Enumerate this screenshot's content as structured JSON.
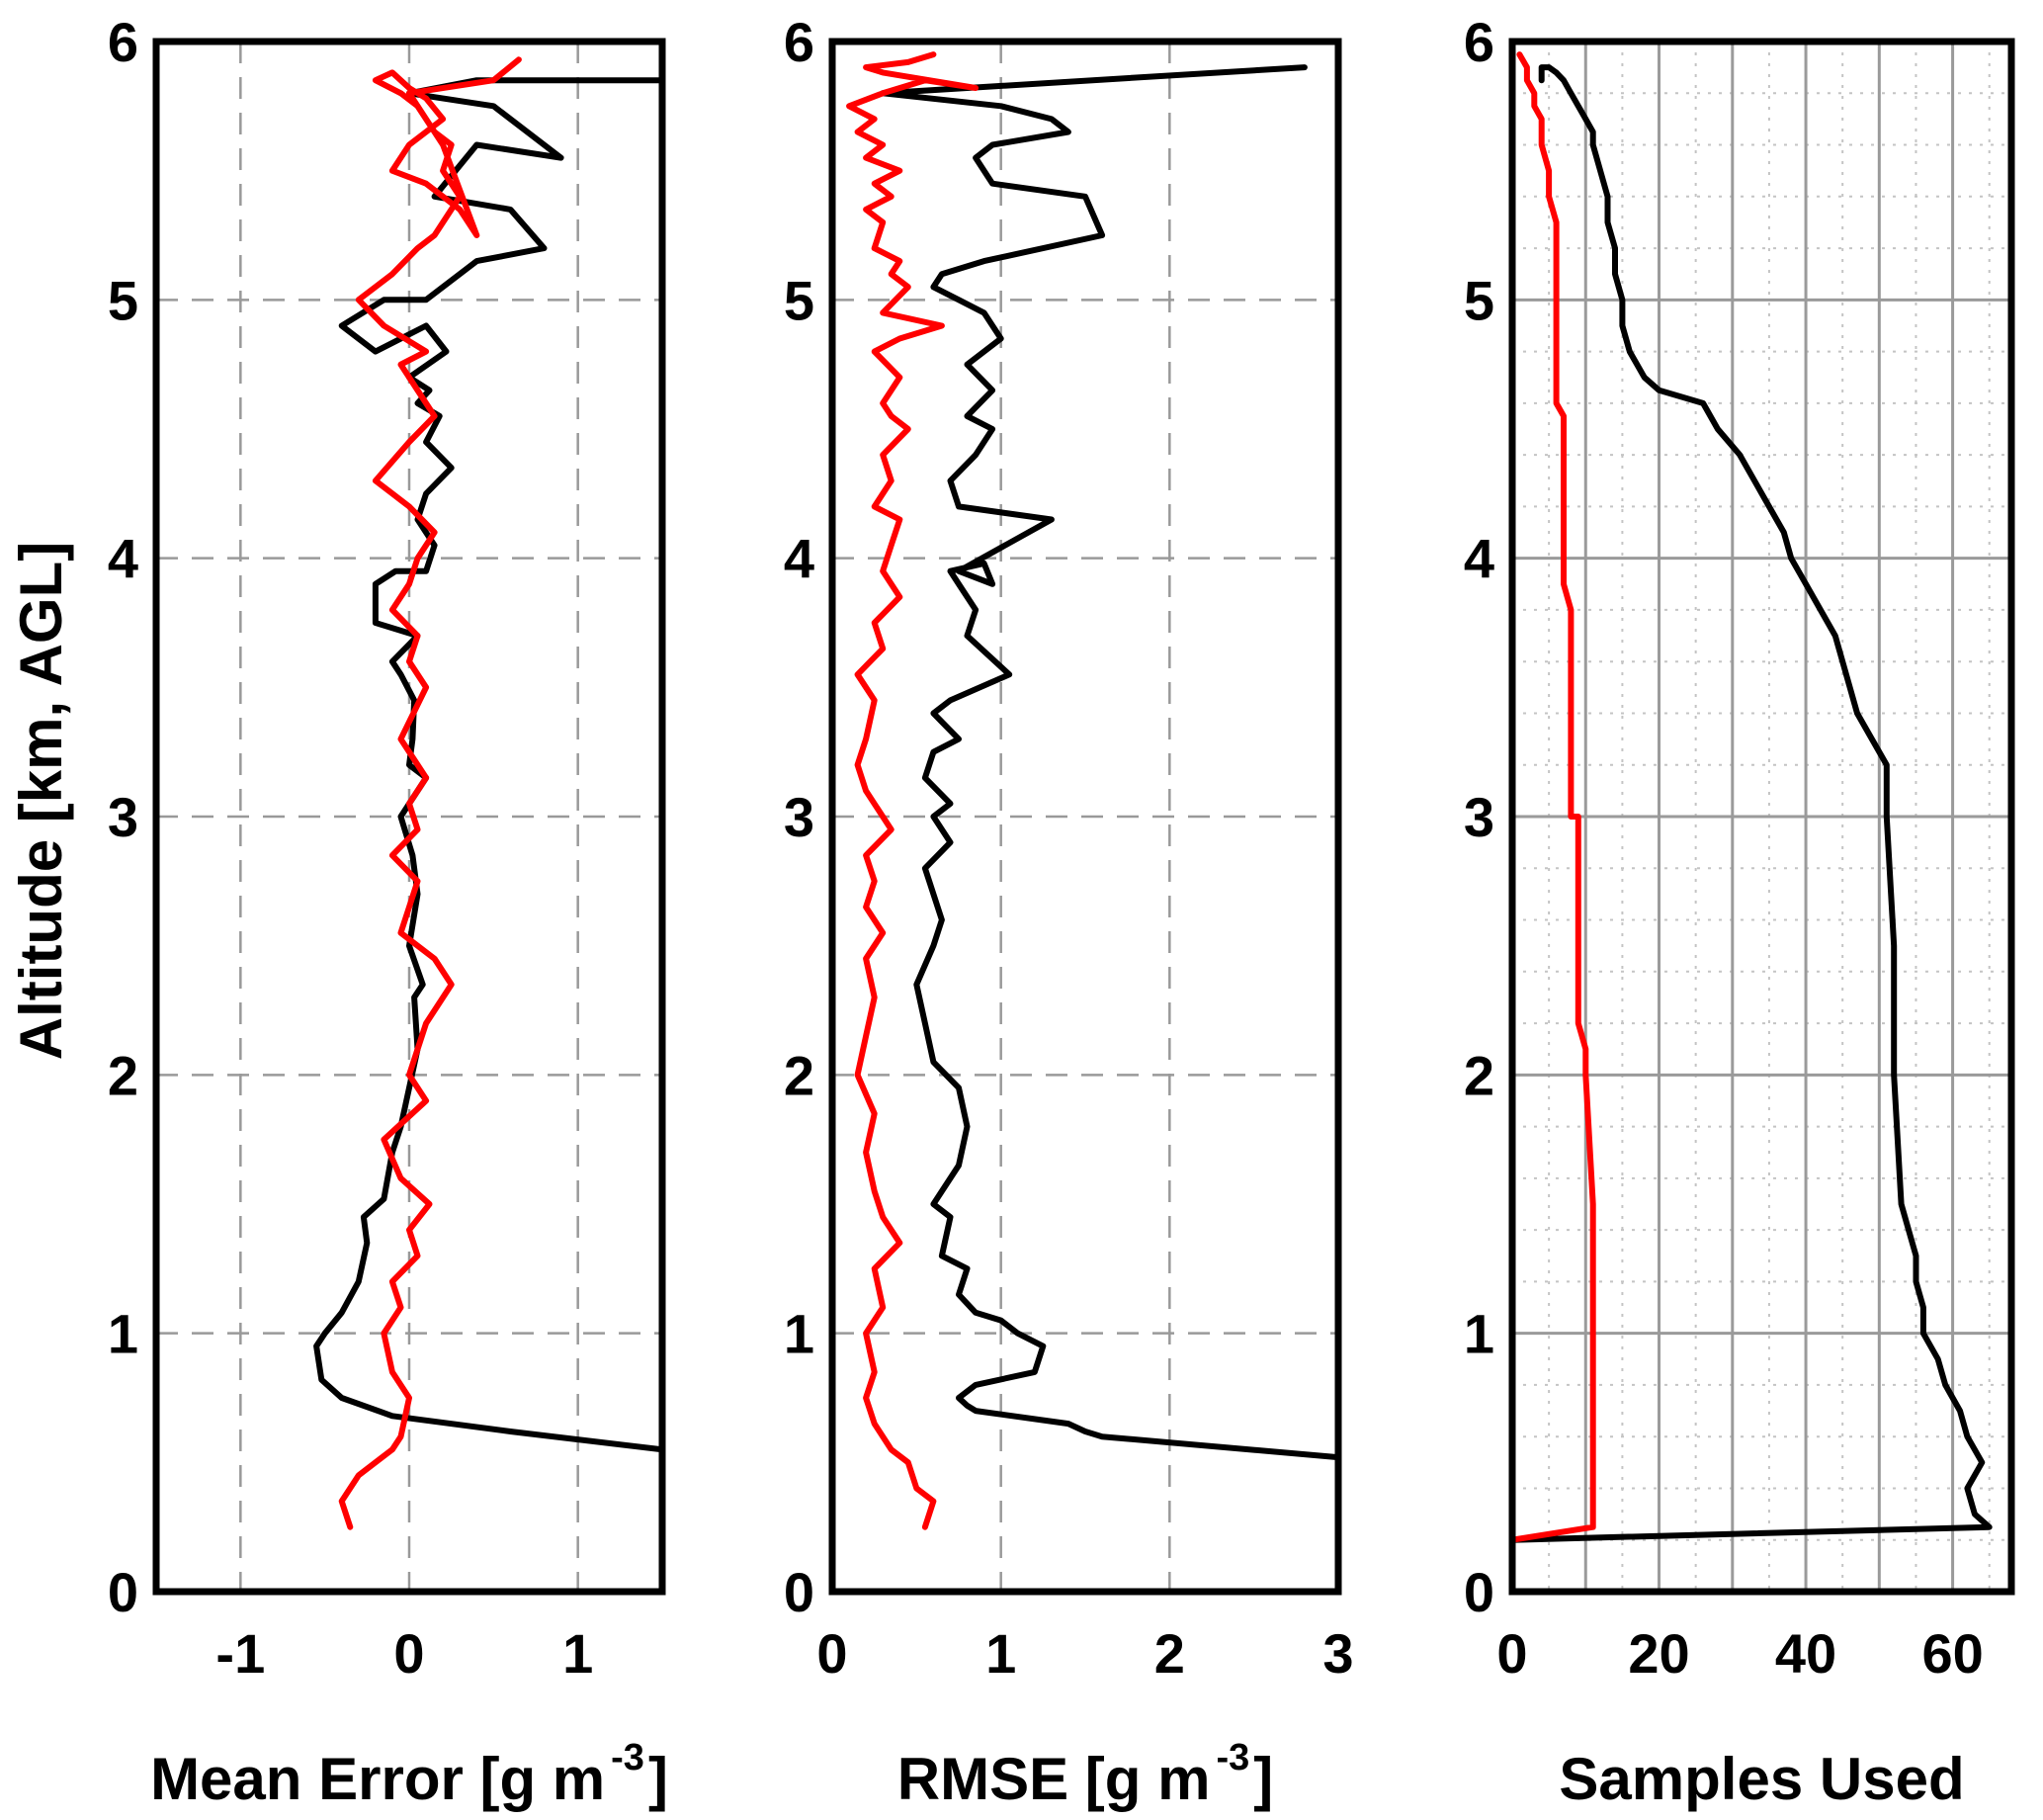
{
  "figure": {
    "ylabel": "Altitude [km, AGL]"
  },
  "chart_data": [
    {
      "type": "line",
      "xlabel": "Mean Error [g m -3]",
      "xlabel_main": "Mean Error [g m",
      "xlabel_sup": "-3",
      "xlabel_end": "]",
      "xlim": [
        -1.5,
        1.5
      ],
      "ylim": [
        0,
        6
      ],
      "xticks": [
        "-1",
        "0",
        "1"
      ],
      "xtick_values": [
        -1,
        0,
        1
      ],
      "yticks": [
        "0",
        "1",
        "2",
        "3",
        "4",
        "5",
        "6"
      ],
      "ytick_values": [
        0,
        1,
        2,
        3,
        4,
        5,
        6
      ],
      "grid": "dashed",
      "series": [
        {
          "color": "#000000",
          "x": [
            1.5,
            0.6,
            -0.1,
            -0.4,
            -0.52,
            -0.55,
            -0.5,
            -0.4,
            -0.3,
            -0.25,
            -0.27,
            -0.15,
            -0.1,
            -0.05,
            0.0,
            0.05,
            0.03,
            0.08,
            0.0,
            0.05,
            0.02,
            -0.05,
            0.1,
            0.0,
            0.02,
            0.03,
            -0.05,
            -0.1,
            0.05,
            -0.2,
            -0.2,
            -0.08,
            0.1,
            0.15,
            0.05,
            0.1,
            0.25,
            0.1,
            0.18,
            0.05,
            0.12,
            0.0,
            0.22,
            0.1,
            -0.2,
            -0.4,
            -0.15,
            0.1,
            0.4,
            0.8,
            0.6,
            0.15,
            0.4,
            0.9,
            0.5,
            0.0,
            0.4,
            1.5
          ],
          "y": [
            0.55,
            0.62,
            0.68,
            0.75,
            0.82,
            0.95,
            1.0,
            1.08,
            1.2,
            1.35,
            1.45,
            1.52,
            1.7,
            1.8,
            1.95,
            2.1,
            2.3,
            2.35,
            2.5,
            2.7,
            2.85,
            3.0,
            3.15,
            3.2,
            3.3,
            3.45,
            3.55,
            3.6,
            3.7,
            3.75,
            3.9,
            3.95,
            3.95,
            4.05,
            4.15,
            4.25,
            4.35,
            4.45,
            4.55,
            4.6,
            4.65,
            4.7,
            4.8,
            4.9,
            4.8,
            4.9,
            5.0,
            5.0,
            5.15,
            5.2,
            5.35,
            5.4,
            5.6,
            5.55,
            5.75,
            5.8,
            5.85,
            5.85
          ]
        },
        {
          "color": "#ff0000",
          "x": [
            -0.35,
            -0.4,
            -0.3,
            -0.2,
            -0.1,
            -0.05,
            0.0,
            -0.1,
            -0.15,
            -0.05,
            -0.1,
            0.05,
            0.0,
            0.12,
            -0.05,
            -0.15,
            0.1,
            0.0,
            0.1,
            0.25,
            0.15,
            -0.05,
            0.0,
            0.05,
            -0.1,
            0.05,
            0.0,
            0.1,
            -0.05,
            0.1,
            0.0,
            0.05,
            -0.1,
            0.0,
            0.05,
            0.15,
            0.0,
            -0.1,
            -0.2,
            0.0,
            0.15,
            0.05,
            -0.05,
            0.1,
            -0.15,
            -0.3,
            -0.1,
            0.05,
            0.15,
            0.3,
            0.2,
            0.25,
            0.15,
            0.05,
            -0.05,
            -0.2,
            -0.1,
            0.0,
            0.1,
            0.2,
            0.0,
            -0.1,
            0.1,
            0.3,
            0.4,
            0.2,
            0.0,
            0.5,
            0.65
          ],
          "y": [
            0.25,
            0.35,
            0.45,
            0.5,
            0.55,
            0.6,
            0.75,
            0.85,
            1.0,
            1.1,
            1.2,
            1.3,
            1.4,
            1.5,
            1.6,
            1.75,
            1.9,
            2.0,
            2.2,
            2.35,
            2.45,
            2.55,
            2.65,
            2.75,
            2.85,
            2.95,
            3.05,
            3.15,
            3.3,
            3.5,
            3.6,
            3.7,
            3.8,
            3.9,
            4.0,
            4.1,
            4.2,
            4.25,
            4.3,
            4.45,
            4.55,
            4.65,
            4.75,
            4.8,
            4.9,
            5.0,
            5.1,
            5.2,
            5.25,
            5.4,
            5.5,
            5.6,
            5.65,
            5.75,
            5.8,
            5.85,
            5.88,
            5.82,
            5.78,
            5.7,
            5.6,
            5.5,
            5.45,
            5.35,
            5.25,
            5.6,
            5.8,
            5.85,
            5.93
          ]
        }
      ]
    },
    {
      "type": "line",
      "xlabel": "RMSE [g m -3]",
      "xlabel_main": "RMSE [g m",
      "xlabel_sup": "-3",
      "xlabel_end": "]",
      "xlim": [
        0,
        3
      ],
      "ylim": [
        0,
        6
      ],
      "xticks": [
        "0",
        "1",
        "2",
        "3"
      ],
      "xtick_values": [
        0,
        1,
        2,
        3
      ],
      "yticks": [
        "0",
        "1",
        "2",
        "3",
        "4",
        "5",
        "6"
      ],
      "ytick_values": [
        0,
        1,
        2,
        3,
        4,
        5,
        6
      ],
      "grid": "dashed",
      "series": [
        {
          "color": "#000000",
          "x": [
            3.0,
            1.6,
            1.5,
            1.4,
            0.85,
            0.8,
            0.75,
            0.85,
            1.2,
            1.25,
            1.1,
            1.0,
            0.85,
            0.75,
            0.8,
            0.65,
            0.7,
            0.6,
            0.75,
            0.8,
            0.75,
            0.6,
            0.55,
            0.5,
            0.6,
            0.65,
            0.55,
            0.7,
            0.6,
            0.7,
            0.55,
            0.6,
            0.75,
            0.6,
            0.7,
            1.05,
            0.8,
            0.85,
            0.75,
            0.7,
            0.9,
            0.95,
            0.75,
            1.3,
            0.75,
            0.7,
            0.85,
            0.95,
            0.8,
            0.95,
            0.8,
            1.0,
            0.9,
            0.75,
            0.6,
            0.65,
            0.9,
            1.6,
            1.5,
            0.95,
            0.85,
            0.95,
            1.4,
            1.3,
            1.0,
            0.3,
            0.8,
            2.8
          ],
          "y": [
            0.52,
            0.6,
            0.62,
            0.65,
            0.7,
            0.72,
            0.75,
            0.8,
            0.85,
            0.95,
            1.0,
            1.05,
            1.08,
            1.15,
            1.25,
            1.3,
            1.45,
            1.5,
            1.65,
            1.8,
            1.95,
            2.05,
            2.2,
            2.35,
            2.5,
            2.6,
            2.8,
            2.9,
            3.0,
            3.05,
            3.15,
            3.25,
            3.3,
            3.4,
            3.45,
            3.55,
            3.7,
            3.8,
            3.9,
            3.95,
            3.98,
            3.9,
            3.95,
            4.15,
            4.2,
            4.3,
            4.4,
            4.5,
            4.55,
            4.65,
            4.75,
            4.85,
            4.95,
            5.0,
            5.05,
            5.1,
            5.15,
            5.25,
            5.4,
            5.45,
            5.55,
            5.6,
            5.65,
            5.7,
            5.75,
            5.8,
            5.82,
            5.9
          ]
        },
        {
          "color": "#ff0000",
          "x": [
            0.55,
            0.6,
            0.5,
            0.45,
            0.35,
            0.25,
            0.2,
            0.25,
            0.2,
            0.3,
            0.25,
            0.4,
            0.3,
            0.25,
            0.2,
            0.25,
            0.15,
            0.2,
            0.25,
            0.2,
            0.3,
            0.2,
            0.25,
            0.2,
            0.35,
            0.2,
            0.15,
            0.2,
            0.25,
            0.15,
            0.3,
            0.25,
            0.4,
            0.3,
            0.35,
            0.4,
            0.25,
            0.35,
            0.3,
            0.45,
            0.35,
            0.3,
            0.4,
            0.25,
            0.4,
            0.65,
            0.3,
            0.45,
            0.35,
            0.4,
            0.25,
            0.3,
            0.2,
            0.35,
            0.25,
            0.4,
            0.2,
            0.3,
            0.15,
            0.25,
            0.1,
            0.3,
            0.55,
            0.85,
            0.3,
            0.2,
            0.45,
            0.6
          ],
          "y": [
            0.25,
            0.35,
            0.4,
            0.5,
            0.55,
            0.65,
            0.75,
            0.85,
            1.0,
            1.1,
            1.25,
            1.35,
            1.45,
            1.55,
            1.7,
            1.85,
            2.0,
            2.15,
            2.3,
            2.45,
            2.55,
            2.65,
            2.75,
            2.85,
            2.95,
            3.1,
            3.2,
            3.3,
            3.45,
            3.55,
            3.65,
            3.75,
            3.85,
            3.95,
            4.05,
            4.15,
            4.2,
            4.3,
            4.4,
            4.5,
            4.55,
            4.6,
            4.7,
            4.8,
            4.85,
            4.9,
            4.95,
            5.05,
            5.1,
            5.15,
            5.2,
            5.3,
            5.35,
            5.4,
            5.45,
            5.5,
            5.55,
            5.6,
            5.65,
            5.7,
            5.75,
            5.8,
            5.85,
            5.82,
            5.88,
            5.9,
            5.92,
            5.95
          ]
        }
      ]
    },
    {
      "type": "line",
      "xlabel": "Samples Used",
      "xlabel_main": "Samples Used",
      "xlabel_sup": "",
      "xlabel_end": "",
      "xlim": [
        0,
        68
      ],
      "ylim": [
        0,
        6
      ],
      "xticks": [
        "0",
        "20",
        "40",
        "60"
      ],
      "xtick_values": [
        0,
        20,
        40,
        60
      ],
      "yticks": [
        "0",
        "1",
        "2",
        "3",
        "4",
        "5",
        "6"
      ],
      "ytick_values": [
        0,
        1,
        2,
        3,
        4,
        5,
        6
      ],
      "grid": "solid",
      "series": [
        {
          "color": "#000000",
          "x": [
            0,
            65,
            63,
            62,
            64,
            62,
            61,
            59,
            58,
            56,
            56,
            55,
            55,
            54,
            53,
            52,
            52,
            51,
            51,
            49,
            47,
            46,
            45,
            44,
            42,
            40,
            38,
            37,
            35,
            33,
            31,
            28,
            26,
            20,
            18,
            16,
            15,
            15,
            14,
            14,
            13,
            13,
            12,
            11,
            11,
            10,
            9,
            8,
            7,
            6,
            5,
            4,
            4
          ],
          "y": [
            0.2,
            0.25,
            0.3,
            0.4,
            0.5,
            0.6,
            0.7,
            0.8,
            0.9,
            1.0,
            1.1,
            1.2,
            1.3,
            1.4,
            1.5,
            2.0,
            2.5,
            3.0,
            3.2,
            3.3,
            3.4,
            3.5,
            3.6,
            3.7,
            3.8,
            3.9,
            4.0,
            4.1,
            4.2,
            4.3,
            4.4,
            4.5,
            4.6,
            4.65,
            4.7,
            4.8,
            4.9,
            5.0,
            5.1,
            5.2,
            5.3,
            5.4,
            5.5,
            5.6,
            5.65,
            5.7,
            5.75,
            5.8,
            5.85,
            5.88,
            5.9,
            5.9,
            5.85
          ]
        },
        {
          "color": "#ff0000",
          "x": [
            0,
            11,
            11,
            11,
            11,
            10,
            10,
            9,
            9,
            9,
            9,
            8,
            8,
            8,
            8,
            7,
            7,
            7,
            7,
            6,
            6,
            6,
            6,
            5,
            5,
            4,
            4,
            3,
            3,
            2,
            2,
            1
          ],
          "y": [
            0.2,
            0.25,
            0.5,
            1.0,
            1.5,
            2.0,
            2.1,
            2.2,
            2.5,
            2.9,
            3.0,
            3.0,
            3.3,
            3.6,
            3.8,
            3.9,
            4.2,
            4.5,
            4.55,
            4.6,
            5.0,
            5.2,
            5.3,
            5.4,
            5.5,
            5.6,
            5.7,
            5.75,
            5.8,
            5.85,
            5.9,
            5.95
          ]
        }
      ]
    }
  ]
}
